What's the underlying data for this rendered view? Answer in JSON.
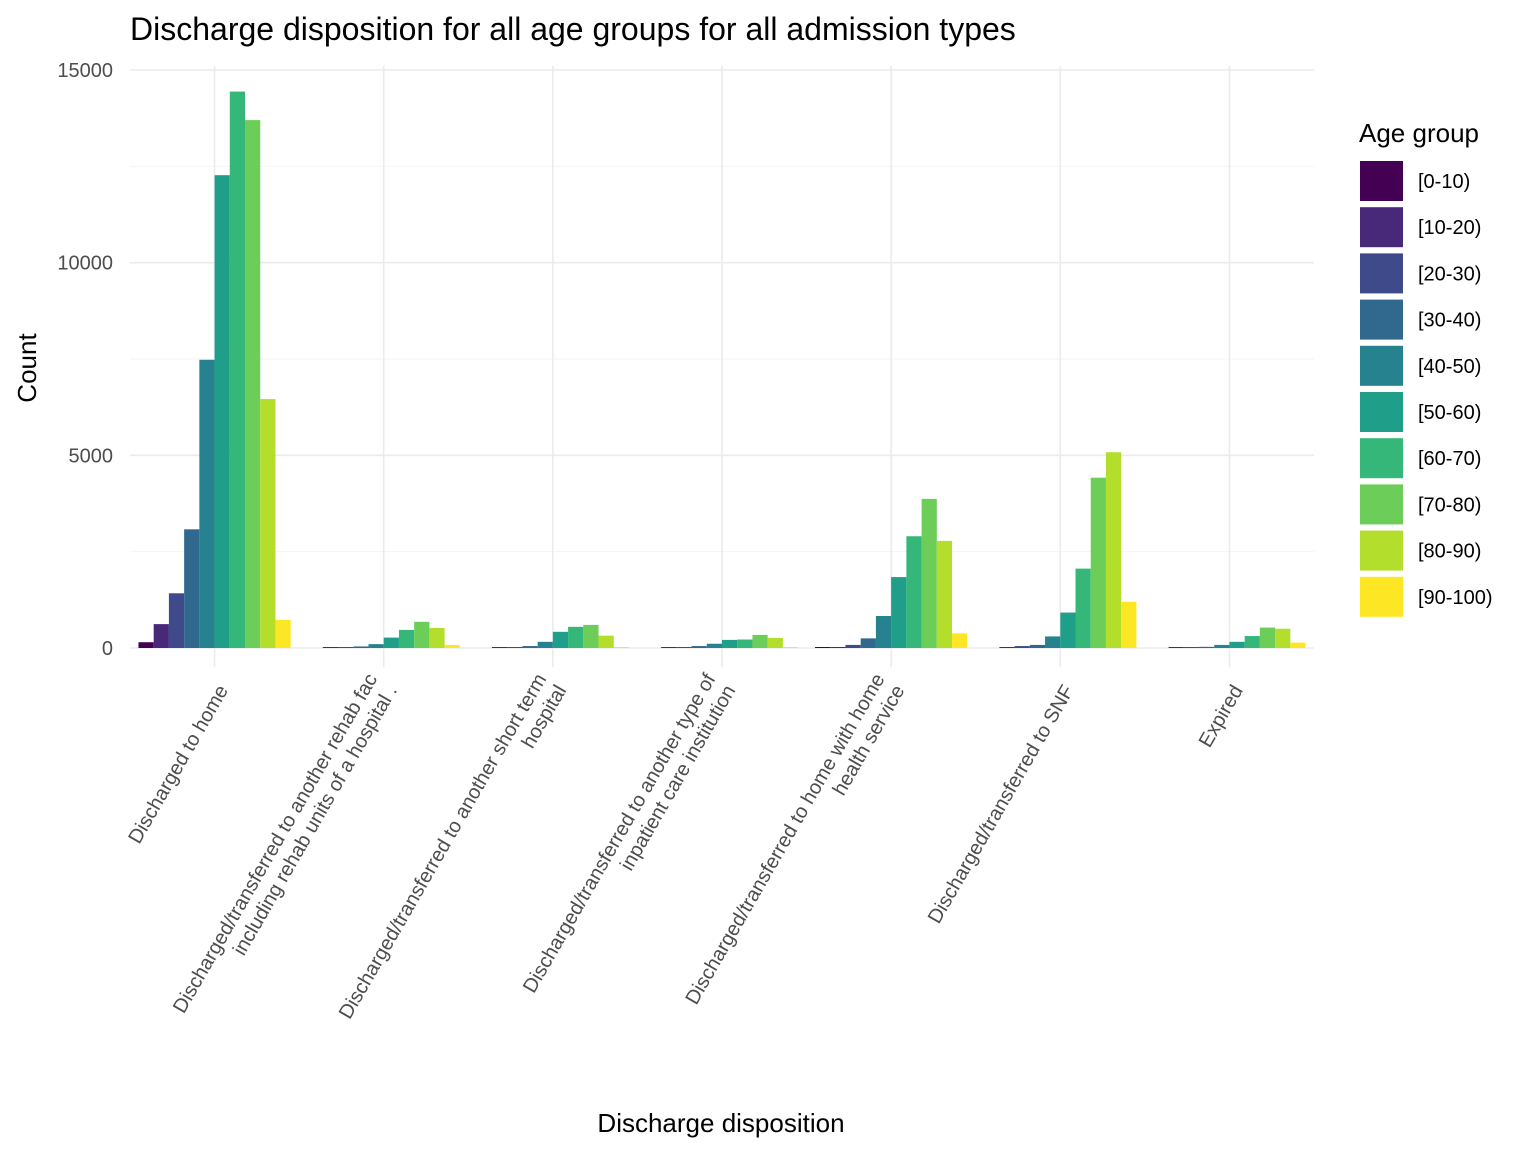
{
  "chart_data": {
    "type": "bar",
    "title": "Discharge disposition for all age groups for all admission types",
    "xlabel": "Discharge disposition",
    "ylabel": "Count",
    "ylim": [
      -500,
      15000
    ],
    "yticks": [
      0,
      5000,
      10000,
      15000
    ],
    "grid": true,
    "legend": {
      "title": "Age group",
      "position": "right"
    },
    "categories": [
      [
        "Discharged to home"
      ],
      [
        "Discharged/transferred to another rehab fac",
        "including rehab units of a hospital ."
      ],
      [
        "Discharged/transferred to another short term",
        "hospital"
      ],
      [
        "Discharged/transferred to another type of",
        "inpatient care institution"
      ],
      [
        "Discharged/transferred to home with home",
        "health service"
      ],
      [
        "Discharged/transferred to SNF"
      ],
      [
        "Expired"
      ]
    ],
    "series": [
      {
        "name": "[0-10)",
        "color": "#440154",
        "values": [
          150,
          0,
          0,
          0,
          10,
          0,
          0
        ]
      },
      {
        "name": "[10-20)",
        "color": "#482878",
        "values": [
          620,
          5,
          5,
          5,
          25,
          10,
          5
        ]
      },
      {
        "name": "[20-30)",
        "color": "#3E4A89",
        "values": [
          1420,
          20,
          25,
          20,
          80,
          50,
          15
        ]
      },
      {
        "name": "[30-40)",
        "color": "#31688E",
        "values": [
          3080,
          40,
          50,
          50,
          250,
          80,
          30
        ]
      },
      {
        "name": "[40-50)",
        "color": "#26828E",
        "values": [
          7480,
          100,
          160,
          110,
          830,
          300,
          80
        ]
      },
      {
        "name": "[50-60)",
        "color": "#1F9E89",
        "values": [
          12270,
          270,
          420,
          210,
          1840,
          920,
          160
        ]
      },
      {
        "name": "[60-70)",
        "color": "#35B779",
        "values": [
          14440,
          470,
          550,
          220,
          2900,
          2060,
          310
        ]
      },
      {
        "name": "[70-80)",
        "color": "#6DCD59",
        "values": [
          13700,
          680,
          600,
          340,
          3870,
          4420,
          530
        ]
      },
      {
        "name": "[80-90)",
        "color": "#B4DE2C",
        "values": [
          6460,
          520,
          320,
          260,
          2780,
          5080,
          500
        ]
      },
      {
        "name": "[90-100)",
        "color": "#FDE725",
        "values": [
          730,
          80,
          20,
          20,
          380,
          1200,
          140
        ]
      }
    ]
  }
}
